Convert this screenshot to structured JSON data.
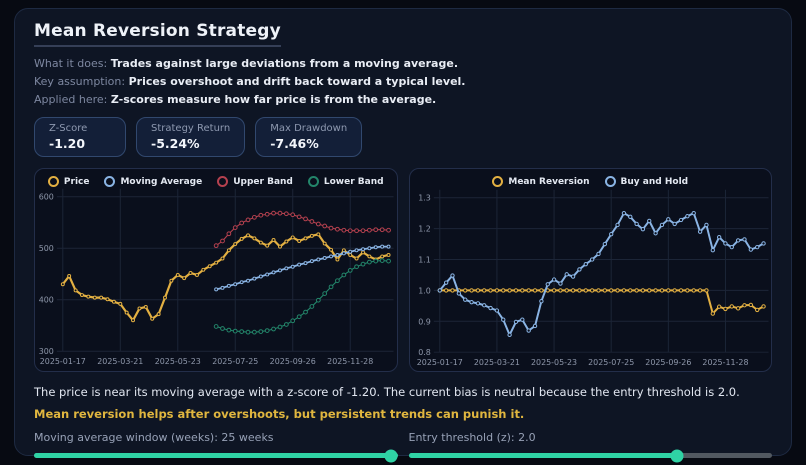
{
  "header": {
    "title": "Mean Reversion Strategy",
    "info_lines": [
      {
        "label": "What it does:",
        "text": "Trades against large deviations from a moving average."
      },
      {
        "label": "Key assumption:",
        "text": "Prices overshoot and drift back toward a typical level."
      },
      {
        "label": "Applied here:",
        "text": "Z-scores measure how far price is from the average."
      }
    ]
  },
  "stats": [
    {
      "label": "Z-Score",
      "value": "-1.20"
    },
    {
      "label": "Strategy Return",
      "value": "-5.24%"
    },
    {
      "label": "Max Drawdown",
      "value": "-7.46%"
    }
  ],
  "chart_data": [
    {
      "type": "line",
      "title": "",
      "xlabel": "",
      "ylabel": "",
      "n_points": 52,
      "ylim": [
        300,
        600
      ],
      "yticks": [
        600,
        500,
        400,
        300
      ],
      "ytick_labels": [
        "600",
        "500",
        "400",
        "300"
      ],
      "x_ticks": [
        0,
        9,
        18,
        27,
        36,
        45
      ],
      "x_tick_labels": [
        "2025-01-17",
        "2025-03-21",
        "2025-05-23",
        "2025-07-25",
        "2025-09-26",
        "2025-11-28"
      ],
      "grid": true,
      "legend_position": "top-center",
      "series": [
        {
          "name": "Price",
          "color": "#e3b042",
          "start_index": 0,
          "values": [
            430,
            446,
            418,
            409,
            406,
            404,
            404,
            401,
            396,
            392,
            375,
            360,
            383,
            386,
            363,
            372,
            404,
            437,
            448,
            442,
            452,
            448,
            458,
            465,
            472,
            480,
            496,
            508,
            518,
            525,
            519,
            511,
            505,
            516,
            503,
            513,
            521,
            514,
            519,
            524,
            527,
            509,
            497,
            478,
            496,
            487,
            480,
            492,
            484,
            478,
            484,
            487
          ]
        },
        {
          "name": "Moving Average",
          "color": "#8ab4e4",
          "start_index": 24,
          "values": [
            420,
            423,
            427,
            430,
            434,
            437,
            441,
            445,
            449,
            453,
            457,
            461,
            464,
            468,
            471,
            475,
            478,
            481,
            484,
            487,
            490,
            493,
            496,
            498,
            500,
            502,
            503,
            503
          ]
        },
        {
          "name": "Upper Band",
          "color": "#b5414f",
          "start_index": 24,
          "values": [
            505,
            514,
            528,
            540,
            549,
            555,
            560,
            564,
            566,
            568,
            568,
            567,
            565,
            561,
            557,
            552,
            547,
            543,
            539,
            537,
            535,
            534,
            534,
            534,
            535,
            536,
            536,
            535
          ]
        },
        {
          "name": "Lower Band",
          "color": "#23856a",
          "start_index": 24,
          "values": [
            348,
            344,
            341,
            339,
            338,
            337,
            337,
            338,
            340,
            343,
            347,
            352,
            359,
            367,
            376,
            387,
            399,
            412,
            425,
            437,
            448,
            457,
            464,
            469,
            473,
            475,
            476,
            475
          ]
        }
      ]
    },
    {
      "type": "line",
      "title": "",
      "xlabel": "",
      "ylabel": "",
      "n_points": 52,
      "ylim": [
        0.8,
        1.3
      ],
      "yticks": [
        1.3,
        1.2,
        1.1,
        1.0,
        0.9,
        0.8
      ],
      "ytick_labels": [
        "1.3",
        "1.2",
        "1.1",
        "1.0",
        "0.9",
        "0.8"
      ],
      "x_ticks": [
        0,
        9,
        18,
        27,
        36,
        45
      ],
      "x_tick_labels": [
        "2025-01-17",
        "2025-03-21",
        "2025-05-23",
        "2025-07-25",
        "2025-09-26",
        "2025-11-28"
      ],
      "grid": true,
      "legend_position": "top-center",
      "series": [
        {
          "name": "Mean Reversion",
          "color": "#e3b042",
          "start_index": 0,
          "values": [
            1.0,
            1.0,
            1.0,
            1.0,
            1.0,
            1.0,
            1.0,
            1.0,
            1.0,
            1.0,
            1.0,
            1.0,
            1.0,
            1.0,
            1.0,
            1.0,
            1.0,
            1.0,
            1.0,
            1.0,
            1.0,
            1.0,
            1.0,
            1.0,
            1.0,
            1.0,
            1.0,
            1.0,
            1.0,
            1.0,
            1.0,
            1.0,
            1.0,
            1.0,
            1.0,
            1.0,
            1.0,
            1.0,
            1.0,
            1.0,
            1.0,
            1.0,
            1.0,
            0.925,
            0.947,
            0.94,
            0.948,
            0.942,
            0.952,
            0.953,
            0.937,
            0.948
          ]
        },
        {
          "name": "Buy and Hold",
          "color": "#8ab4e4",
          "start_index": 0,
          "values": [
            1.0,
            1.025,
            1.048,
            0.99,
            0.97,
            0.962,
            0.958,
            0.952,
            0.943,
            0.935,
            0.905,
            0.856,
            0.898,
            0.905,
            0.87,
            0.885,
            0.965,
            1.02,
            1.035,
            1.022,
            1.052,
            1.045,
            1.068,
            1.085,
            1.1,
            1.118,
            1.15,
            1.182,
            1.212,
            1.25,
            1.238,
            1.215,
            1.198,
            1.225,
            1.185,
            1.212,
            1.23,
            1.215,
            1.228,
            1.24,
            1.25,
            1.19,
            1.212,
            1.13,
            1.172,
            1.152,
            1.14,
            1.162,
            1.165,
            1.132,
            1.14,
            1.152
          ]
        }
      ]
    }
  ],
  "analysis": {
    "line1": "The price is near its moving average with a z-score of -1.20. The current bias is neutral because the entry threshold is 2.0.",
    "line2": "Mean reversion helps after overshoots, but persistent trends can punish it."
  },
  "sliders": [
    {
      "label": "Moving average window (weeks): 25 weeks",
      "percent": 100
    },
    {
      "label": "Entry threshold (z): 2.0",
      "percent": 74
    }
  ],
  "colors": {
    "accent_teal": "#2fd3a5",
    "warning_text": "#e0b63f",
    "grid": "#1c2537",
    "axis_text": "#8e97aa",
    "panel_bg": "#0a0f1c"
  }
}
